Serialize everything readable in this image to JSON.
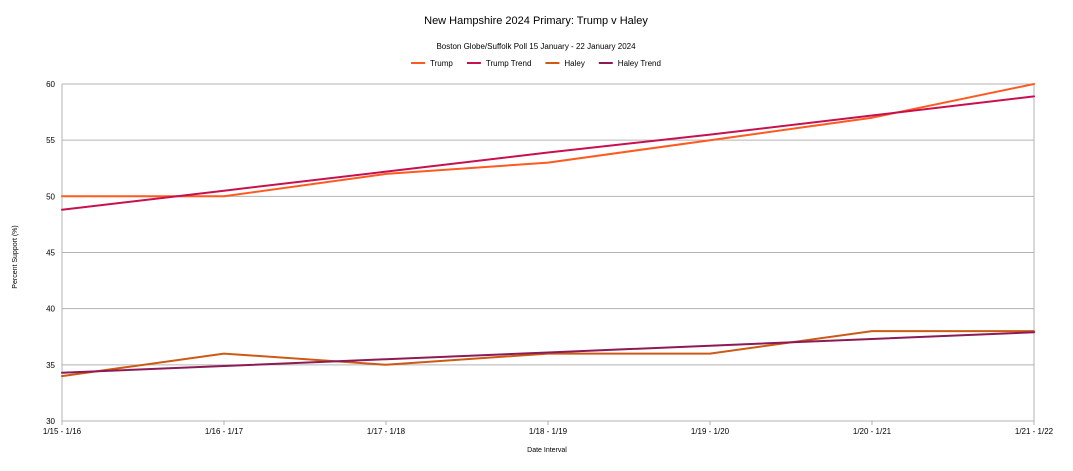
{
  "chart_data": {
    "type": "line",
    "title": "New Hampshire 2024 Primary: Trump v Haley",
    "subtitle": "Boston Globe/Suffolk Poll 15 January - 22 January 2024",
    "xlabel": "Date Interval",
    "ylabel": "Percent Support (%)",
    "categories": [
      "1/15 - 1/16",
      "1/16 - 1/17",
      "1/17 - 1/18",
      "1/18 - 1/19",
      "1/19 - 1/20",
      "1/20 - 1/21",
      "1/21 - 1/22"
    ],
    "ylim": [
      30,
      60
    ],
    "yticks": [
      30,
      35,
      40,
      45,
      50,
      55,
      60
    ],
    "grid": "horizontal",
    "legend_position": "top-center",
    "series": [
      {
        "name": "Trump",
        "values": [
          50,
          50,
          52,
          53,
          55,
          57,
          60
        ],
        "color": "#ff5a1f"
      },
      {
        "name": "Trump Trend",
        "values": [
          48.8,
          50.5,
          52.2,
          53.9,
          55.5,
          57.2,
          58.9
        ],
        "color": "#c8104f"
      },
      {
        "name": "Haley",
        "values": [
          34,
          36,
          35,
          36,
          36,
          38,
          38
        ],
        "color": "#cc5a14"
      },
      {
        "name": "Haley Trend",
        "values": [
          34.3,
          34.9,
          35.5,
          36.1,
          36.7,
          37.3,
          37.9
        ],
        "color": "#8b1a55"
      }
    ]
  }
}
